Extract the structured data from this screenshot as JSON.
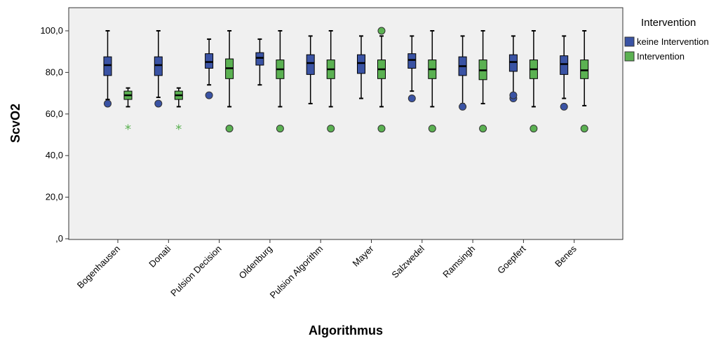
{
  "chart_data": {
    "type": "boxplot",
    "title": "",
    "xlabel": "Algorithmus",
    "ylabel": "ScvO2",
    "ylim": [
      0,
      110
    ],
    "yticks": [
      0,
      20,
      40,
      60,
      80,
      100
    ],
    "ytick_labels": [
      ",0",
      "20,0",
      "40,0",
      "60,0",
      "80,0",
      "100,0"
    ],
    "categories": [
      "Bogenhausen",
      "Donati",
      "Pulsion Decision",
      "Oldenburg",
      "Pulsion Algorithm",
      "Mayer",
      "Salzwedel",
      "Ramsingh",
      "Goepfert",
      "Benes"
    ],
    "legend": {
      "title": "Intervention",
      "position": "right",
      "entries": [
        "keine Intervention",
        "Intervention"
      ]
    },
    "grid": false,
    "series": [
      {
        "name": "keine Intervention",
        "color": "#3a53a4",
        "boxes": [
          {
            "whisker_low": 67,
            "q1": 78.5,
            "median": 83.5,
            "q3": 87.5,
            "whisker_high": 100,
            "outliers": [
              65
            ],
            "extremes": []
          },
          {
            "whisker_low": 68,
            "q1": 78.5,
            "median": 83.5,
            "q3": 87.5,
            "whisker_high": 100,
            "outliers": [
              65
            ],
            "extremes": []
          },
          {
            "whisker_low": 74,
            "q1": 82,
            "median": 85,
            "q3": 89,
            "whisker_high": 96,
            "outliers": [
              69
            ],
            "extremes": []
          },
          {
            "whisker_low": 74,
            "q1": 83.5,
            "median": 87,
            "q3": 89.5,
            "whisker_high": 96,
            "outliers": [],
            "extremes": []
          },
          {
            "whisker_low": 65,
            "q1": 79,
            "median": 84.5,
            "q3": 88.5,
            "whisker_high": 97.5,
            "outliers": [],
            "extremes": []
          },
          {
            "whisker_low": 67.5,
            "q1": 79.5,
            "median": 84.5,
            "q3": 88.5,
            "whisker_high": 97.5,
            "outliers": [],
            "extremes": []
          },
          {
            "whisker_low": 71,
            "q1": 82,
            "median": 86,
            "q3": 89,
            "whisker_high": 97.5,
            "outliers": [
              67.5
            ],
            "extremes": []
          },
          {
            "whisker_low": 65,
            "q1": 78.5,
            "median": 83,
            "q3": 87.5,
            "whisker_high": 97.5,
            "outliers": [
              63.5
            ],
            "extremes": []
          },
          {
            "whisker_low": 70,
            "q1": 80.5,
            "median": 85,
            "q3": 88.5,
            "whisker_high": 97.5,
            "outliers": [
              67.5,
              69
            ],
            "extremes": []
          },
          {
            "whisker_low": 67.5,
            "q1": 79,
            "median": 84,
            "q3": 88,
            "whisker_high": 97.5,
            "outliers": [
              63.5
            ],
            "extremes": []
          }
        ]
      },
      {
        "name": "Intervention",
        "color": "#5bb152",
        "boxes": [
          {
            "whisker_low": 63.5,
            "q1": 67,
            "median": 69,
            "q3": 71,
            "whisker_high": 72.5,
            "outliers": [],
            "extremes": [
              53
            ]
          },
          {
            "whisker_low": 63.5,
            "q1": 67,
            "median": 69,
            "q3": 71,
            "whisker_high": 72.5,
            "outliers": [],
            "extremes": [
              53
            ]
          },
          {
            "whisker_low": 63.5,
            "q1": 77,
            "median": 82,
            "q3": 86.5,
            "whisker_high": 100,
            "outliers": [
              53
            ],
            "extremes": []
          },
          {
            "whisker_low": 63.5,
            "q1": 77,
            "median": 81.5,
            "q3": 86,
            "whisker_high": 100,
            "outliers": [
              53
            ],
            "extremes": []
          },
          {
            "whisker_low": 63.5,
            "q1": 77,
            "median": 81.5,
            "q3": 86,
            "whisker_high": 100,
            "outliers": [
              53
            ],
            "extremes": []
          },
          {
            "whisker_low": 63.5,
            "q1": 77,
            "median": 81.5,
            "q3": 86,
            "whisker_high": 97.5,
            "outliers": [
              53,
              100
            ],
            "extremes": []
          },
          {
            "whisker_low": 63.5,
            "q1": 77,
            "median": 81.5,
            "q3": 86,
            "whisker_high": 100,
            "outliers": [
              53
            ],
            "extremes": []
          },
          {
            "whisker_low": 65,
            "q1": 76.5,
            "median": 81,
            "q3": 86,
            "whisker_high": 100,
            "outliers": [
              53
            ],
            "extremes": []
          },
          {
            "whisker_low": 63.5,
            "q1": 77,
            "median": 81.5,
            "q3": 86,
            "whisker_high": 100,
            "outliers": [
              53
            ],
            "extremes": []
          },
          {
            "whisker_low": 64,
            "q1": 77,
            "median": 81,
            "q3": 86,
            "whisker_high": 100,
            "outliers": [
              53
            ],
            "extremes": []
          }
        ]
      }
    ]
  }
}
